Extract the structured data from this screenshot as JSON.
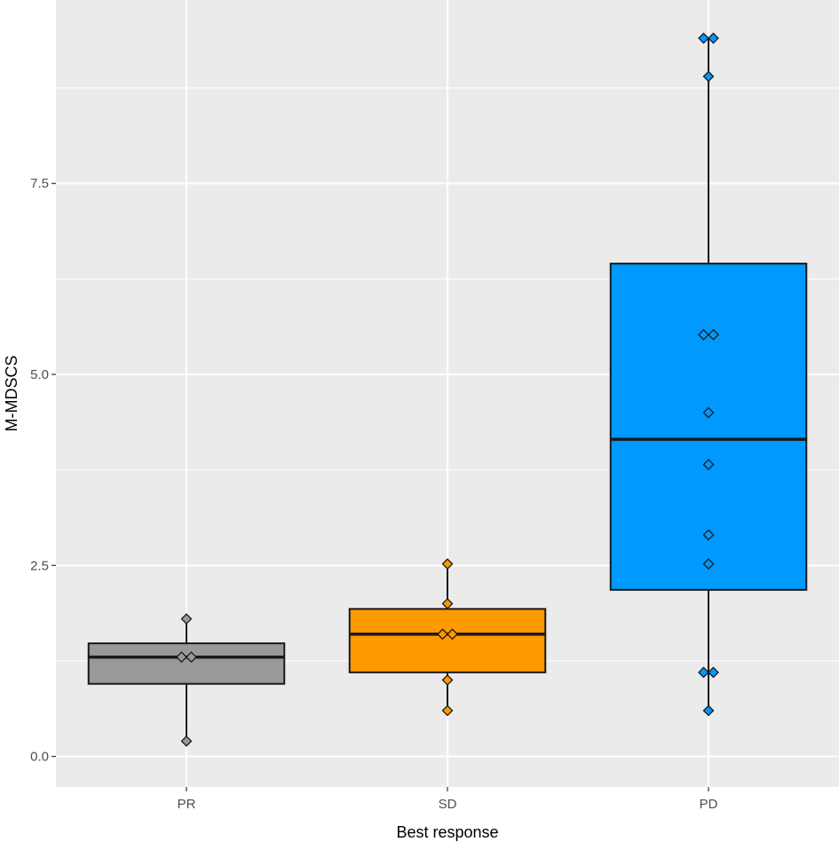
{
  "chart_data": {
    "type": "boxplot",
    "title": "",
    "xlabel": "Best response",
    "ylabel": "M-MDSCS",
    "ylim": [
      -0.4,
      9.9
    ],
    "yticks": [
      {
        "value": 0.0,
        "label": "0.0"
      },
      {
        "value": 2.5,
        "label": "2.5"
      },
      {
        "value": 5.0,
        "label": "5.0"
      },
      {
        "value": 7.5,
        "label": "7.5"
      }
    ],
    "grid": true,
    "legend": "none",
    "categories": [
      "PR",
      "SD",
      "PD"
    ],
    "boxes": [
      {
        "category": "PR",
        "color": "#999999",
        "q1": 0.95,
        "median": 1.3,
        "q3": 1.48,
        "whisker_low": 0.2,
        "whisker_high": 1.8,
        "points": [
          0.2,
          1.3,
          1.3,
          1.8
        ]
      },
      {
        "category": "SD",
        "color": "#FF9900",
        "q1": 1.1,
        "median": 1.6,
        "q3": 1.93,
        "whisker_low": 0.6,
        "whisker_high": 2.52,
        "points": [
          0.6,
          1.0,
          1.6,
          1.6,
          2.0,
          2.52
        ]
      },
      {
        "category": "PD",
        "color": "#0099FF",
        "q1": 2.18,
        "median": 4.15,
        "q3": 6.45,
        "whisker_low": 0.6,
        "whisker_high": 9.4,
        "points": [
          0.6,
          1.1,
          1.1,
          2.52,
          2.9,
          3.82,
          4.5,
          5.52,
          5.52,
          8.9,
          9.4,
          9.4
        ]
      }
    ]
  }
}
